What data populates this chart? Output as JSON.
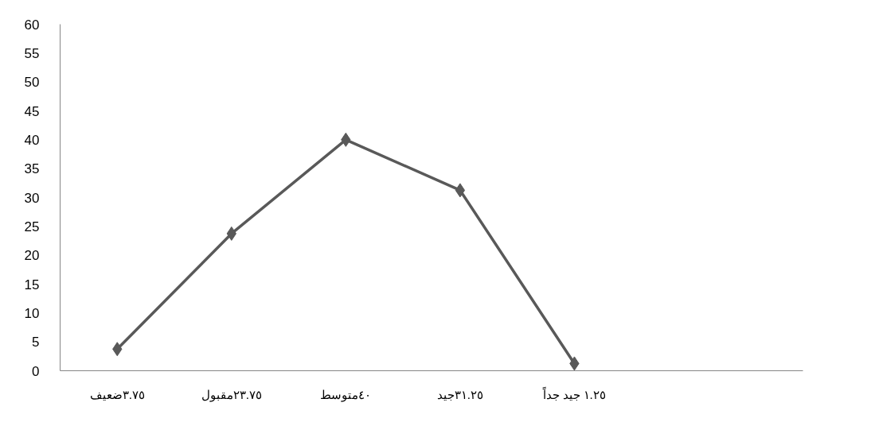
{
  "chart_data": {
    "type": "line",
    "categories": [
      "٣.٧٥ضعيف",
      "٢٣.٧٥مقبول",
      "٤٠متوسط",
      "٣١.٢٥جيد",
      "١.٢٥ جيد جداً",
      null,
      null
    ],
    "series": [
      {
        "color": "#595959",
        "values": [
          3.75,
          23.75,
          40,
          31.25,
          1.25,
          null,
          null
        ]
      }
    ],
    "ylim": [
      0,
      60
    ],
    "yticks": [
      0,
      5,
      10,
      15,
      20,
      25,
      30,
      35,
      40,
      45,
      50,
      55,
      60
    ],
    "marker": "diamond",
    "line_style": "solid",
    "grid": false
  }
}
